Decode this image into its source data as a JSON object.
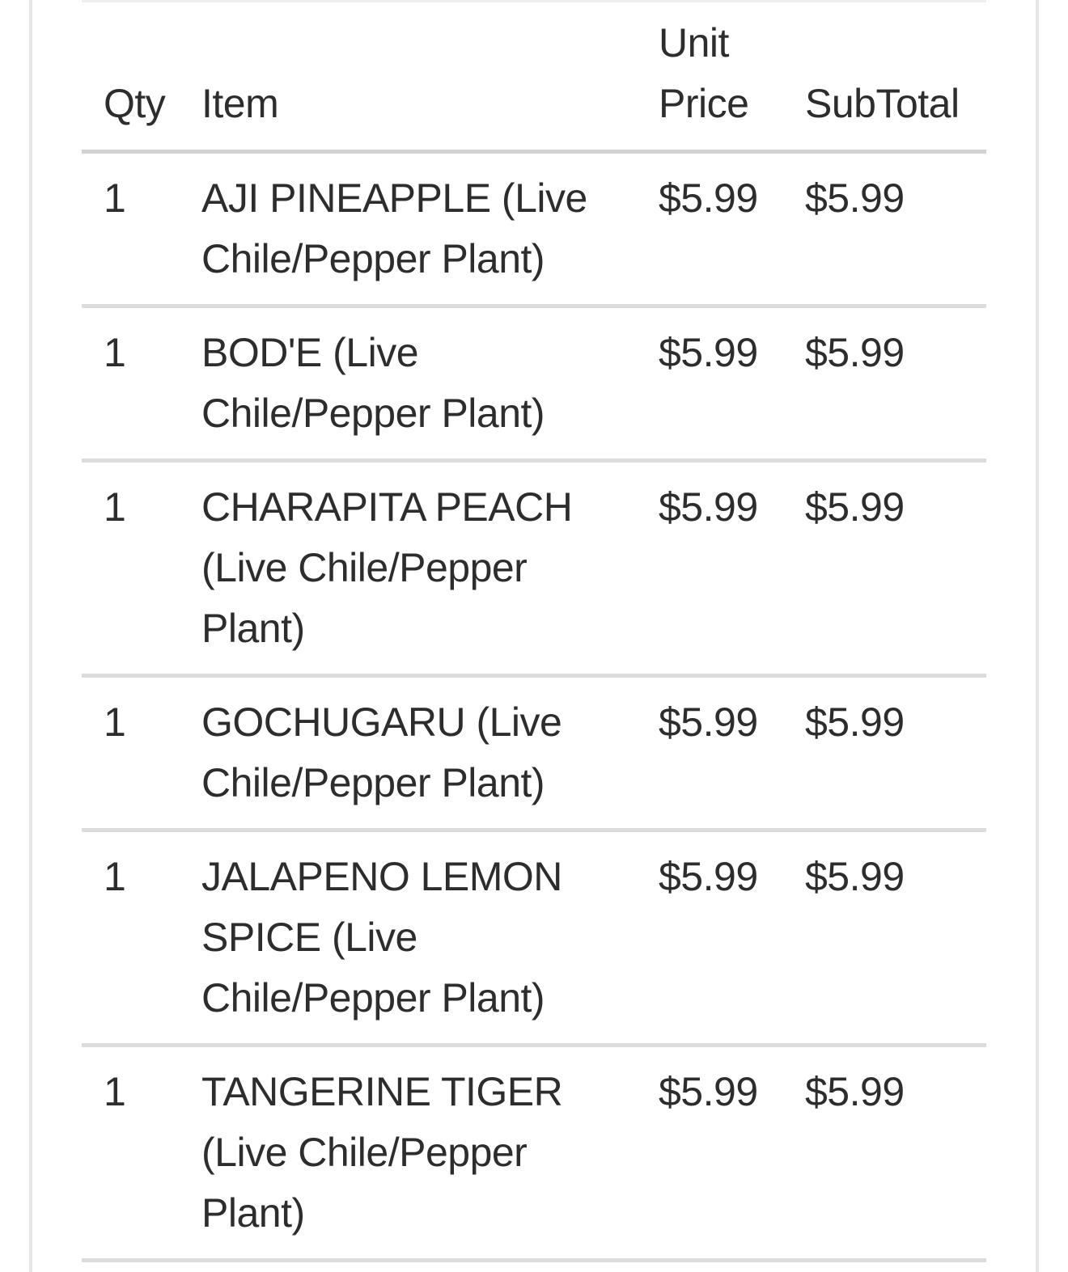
{
  "table": {
    "headers": {
      "qty": "Qty",
      "item": "Item",
      "unit_price_line1": "Unit",
      "unit_price_line2": "Price",
      "subtotal": "SubTotal"
    },
    "rows": [
      {
        "qty": "1",
        "item": "AJI PINEAPPLE (Live Chile/Pepper Plant)",
        "item_lines": [
          "AJI PINEAPPLE (Live",
          "Chile/Pepper Plant)"
        ],
        "unit_price": "$5.99",
        "subtotal": "$5.99"
      },
      {
        "qty": "1",
        "item": "BOD'E (Live Chile/Pepper Plant)",
        "item_lines": [
          "BOD'E (Live",
          "Chile/Pepper Plant)"
        ],
        "unit_price": "$5.99",
        "subtotal": "$5.99"
      },
      {
        "qty": "1",
        "item": "CHARAPITA PEACH (Live Chile/Pepper Plant)",
        "item_lines": [
          "CHARAPITA PEACH",
          "(Live Chile/Pepper",
          "Plant)"
        ],
        "unit_price": "$5.99",
        "subtotal": "$5.99"
      },
      {
        "qty": "1",
        "item": "GOCHUGARU (Live Chile/Pepper Plant)",
        "item_lines": [
          "GOCHUGARU (Live",
          "Chile/Pepper Plant)"
        ],
        "unit_price": "$5.99",
        "subtotal": "$5.99"
      },
      {
        "qty": "1",
        "item": "JALAPENO LEMON SPICE (Live Chile/Pepper Plant)",
        "item_lines": [
          "JALAPENO LEMON",
          "SPICE (Live",
          "Chile/Pepper Plant)"
        ],
        "unit_price": "$5.99",
        "subtotal": "$5.99"
      },
      {
        "qty": "1",
        "item": "TANGERINE TIGER (Live Chile/Pepper Plant)",
        "item_lines": [
          "TANGERINE TIGER",
          "(Live Chile/Pepper",
          "Plant)"
        ],
        "unit_price": "$5.99",
        "subtotal": "$5.99"
      }
    ]
  },
  "colors": {
    "background": "#ffffff",
    "text": "#2d2d2d",
    "card_border": "#e6e6e6",
    "header_underline": "#d2d2d2",
    "row_divider": "#dcdcdc"
  }
}
